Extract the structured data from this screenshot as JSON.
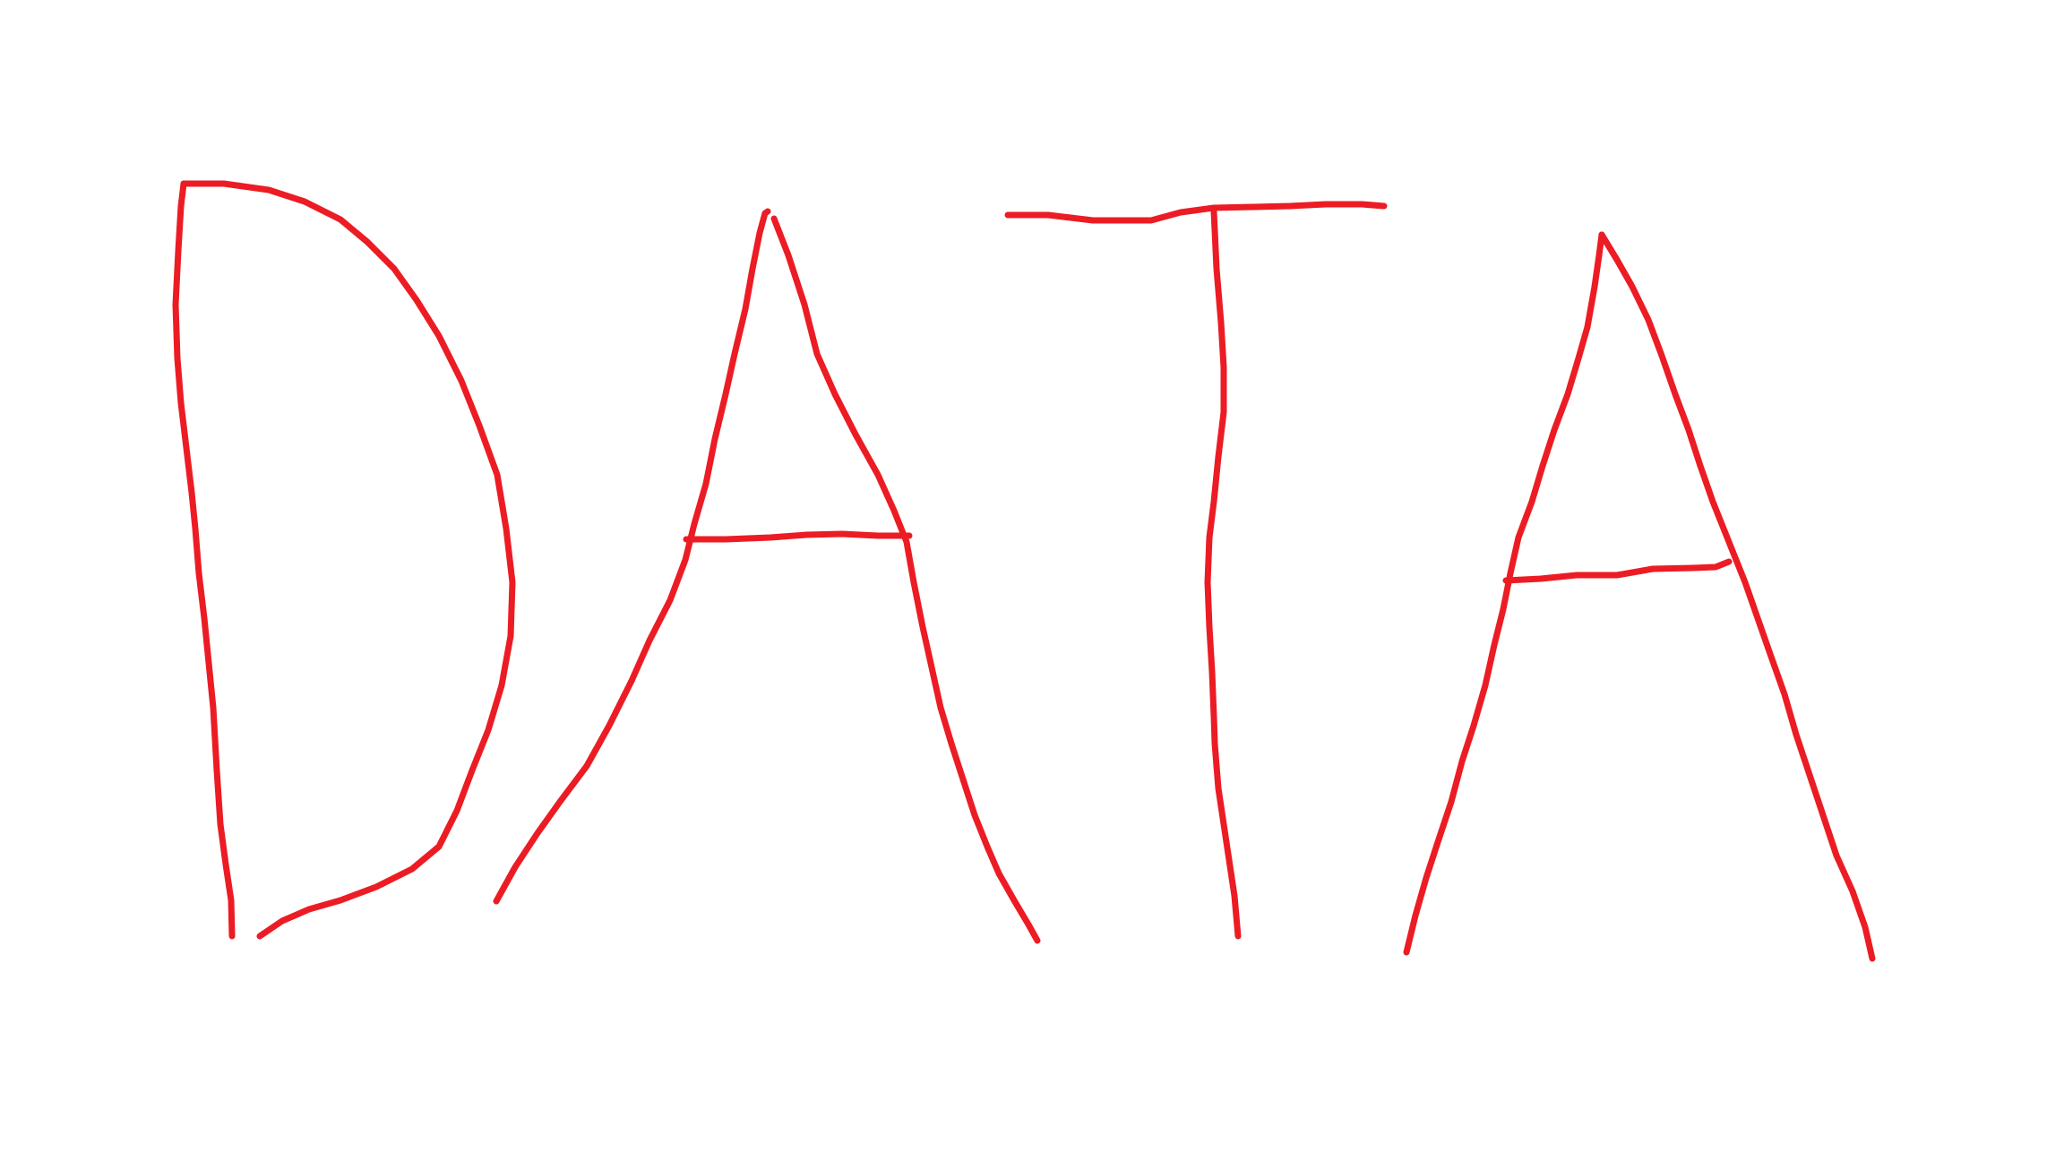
{
  "drawing": {
    "handwritten_text": "DATA",
    "ink_color": "#ec1c24",
    "background_color": "#ffffff"
  }
}
